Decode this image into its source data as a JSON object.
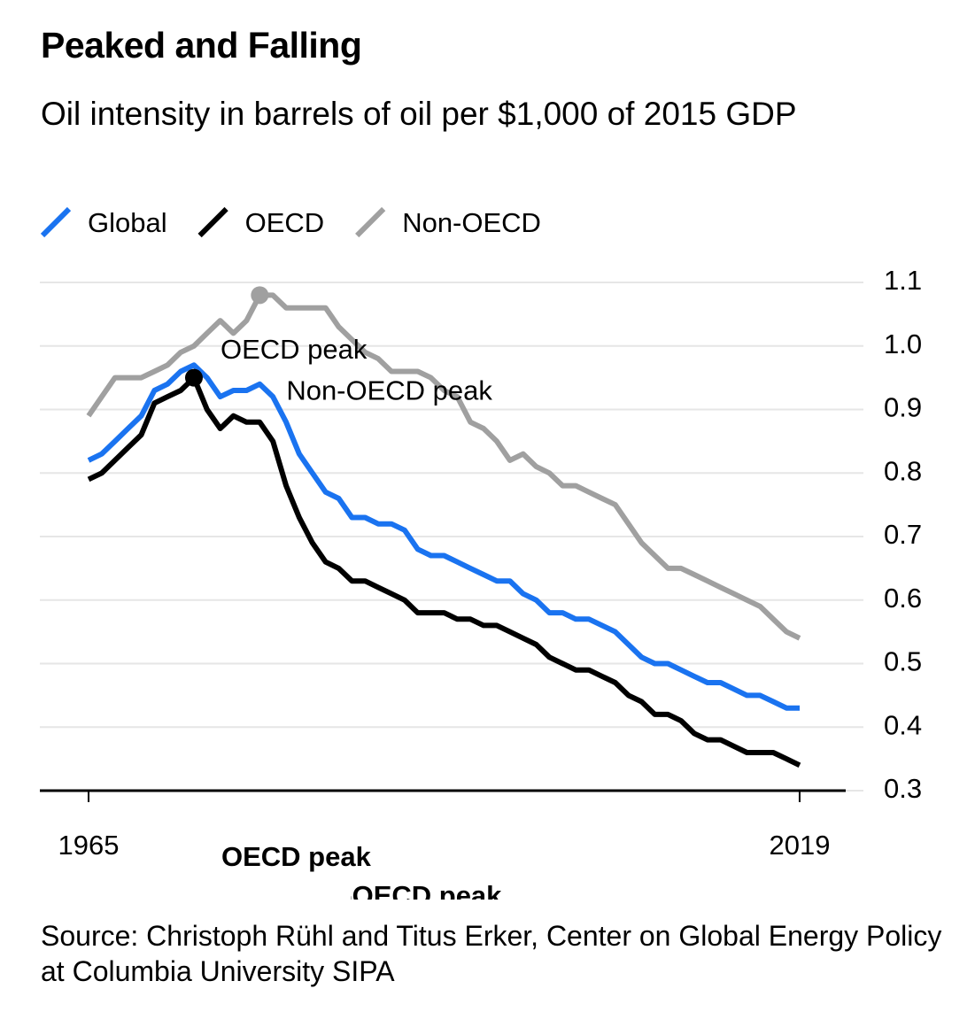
{
  "chart_data": {
    "type": "line",
    "title": "Peaked and Falling",
    "subtitle": "Oil intensity in barrels of oil per $1,000 of 2015 GDP",
    "source": "Source: Christoph Rühl and Titus Erker, Center on Global Energy Policy at Columbia University SIPA",
    "x": [
      1965,
      1966,
      1967,
      1968,
      1969,
      1970,
      1971,
      1972,
      1973,
      1974,
      1975,
      1976,
      1977,
      1978,
      1979,
      1980,
      1981,
      1982,
      1983,
      1984,
      1985,
      1986,
      1987,
      1988,
      1989,
      1990,
      1991,
      1992,
      1993,
      1994,
      1995,
      1996,
      1997,
      1998,
      1999,
      2000,
      2001,
      2002,
      2003,
      2004,
      2005,
      2006,
      2007,
      2008,
      2009,
      2010,
      2011,
      2012,
      2013,
      2014,
      2015,
      2016,
      2017,
      2018,
      2019
    ],
    "series": [
      {
        "name": "Global",
        "color": "#1a73f0",
        "values": [
          0.82,
          0.83,
          0.85,
          0.87,
          0.89,
          0.93,
          0.94,
          0.96,
          0.97,
          0.95,
          0.92,
          0.93,
          0.93,
          0.94,
          0.92,
          0.88,
          0.83,
          0.8,
          0.77,
          0.76,
          0.73,
          0.73,
          0.72,
          0.72,
          0.71,
          0.68,
          0.67,
          0.67,
          0.66,
          0.65,
          0.64,
          0.63,
          0.63,
          0.61,
          0.6,
          0.58,
          0.58,
          0.57,
          0.57,
          0.56,
          0.55,
          0.53,
          0.51,
          0.5,
          0.5,
          0.49,
          0.48,
          0.47,
          0.47,
          0.46,
          0.45,
          0.45,
          0.44,
          0.43,
          0.43
        ]
      },
      {
        "name": "OECD",
        "color": "#000000",
        "values": [
          0.79,
          0.8,
          0.82,
          0.84,
          0.86,
          0.91,
          0.92,
          0.93,
          0.95,
          0.9,
          0.87,
          0.89,
          0.88,
          0.88,
          0.85,
          0.78,
          0.73,
          0.69,
          0.66,
          0.65,
          0.63,
          0.63,
          0.62,
          0.61,
          0.6,
          0.58,
          0.58,
          0.58,
          0.57,
          0.57,
          0.56,
          0.56,
          0.55,
          0.54,
          0.53,
          0.51,
          0.5,
          0.49,
          0.49,
          0.48,
          0.47,
          0.45,
          0.44,
          0.42,
          0.42,
          0.41,
          0.39,
          0.38,
          0.38,
          0.37,
          0.36,
          0.36,
          0.36,
          0.35,
          0.34
        ]
      },
      {
        "name": "Non-OECD",
        "color": "#a0a0a0",
        "values": [
          0.89,
          0.92,
          0.95,
          0.95,
          0.95,
          0.96,
          0.97,
          0.99,
          1.0,
          1.02,
          1.04,
          1.02,
          1.04,
          1.08,
          1.08,
          1.06,
          1.06,
          1.06,
          1.06,
          1.03,
          1.01,
          0.99,
          0.98,
          0.96,
          0.96,
          0.96,
          0.95,
          0.93,
          0.92,
          0.88,
          0.87,
          0.85,
          0.82,
          0.83,
          0.81,
          0.8,
          0.78,
          0.78,
          0.77,
          0.76,
          0.75,
          0.72,
          0.69,
          0.67,
          0.65,
          0.65,
          0.64,
          0.63,
          0.62,
          0.61,
          0.6,
          0.59,
          0.57,
          0.55,
          0.54
        ]
      }
    ],
    "annotations": [
      {
        "text": "OECD peak",
        "series": 1,
        "x": 1973
      },
      {
        "text": "Non-OECD peak",
        "series": 2,
        "x": 1978
      }
    ],
    "xlim": [
      1961.3,
      2022.5
    ],
    "xticks": [
      1965,
      2019
    ],
    "ylim": [
      0.3,
      1.1
    ],
    "yticks": [
      0.3,
      0.4,
      0.5,
      0.6,
      0.7,
      0.8,
      0.9,
      {
        "value": 1,
        "label": "1.0"
      },
      1.1
    ],
    "grid": true,
    "legend": "top-left"
  }
}
